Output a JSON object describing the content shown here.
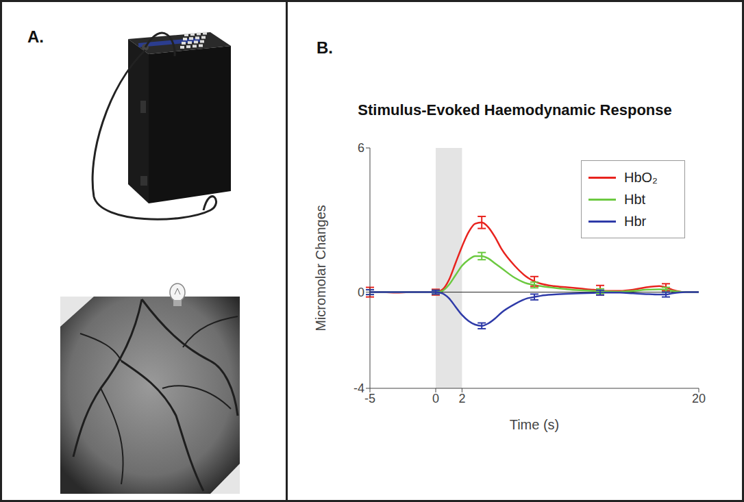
{
  "panel_labels": [
    "A.",
    "B."
  ],
  "chart_data": {
    "type": "line",
    "title": "Stimulus-Evoked Haemodynamic Response",
    "x_label": "Time (s)",
    "y_label": "Micromolar Changes",
    "xlim": [
      -5,
      20
    ],
    "xticks": [
      -5,
      0,
      2,
      20
    ],
    "ylim": [
      -4,
      6
    ],
    "yticks": [
      -4,
      0,
      6
    ],
    "grid": false,
    "legend": "upper right",
    "stimulus": [
      0,
      2
    ],
    "reference_line": 0,
    "x": [
      -5,
      -4,
      -3,
      -2,
      -1,
      0,
      0.5,
      1,
      1.5,
      2,
      2.5,
      3,
      3.5,
      4,
      4.5,
      5,
      6,
      7,
      7.5,
      8,
      9,
      10,
      11,
      12,
      12.5,
      13,
      14,
      15,
      16,
      17,
      17.5,
      18,
      19,
      20
    ],
    "error_x": [
      -5,
      0,
      3.5,
      7.5,
      12.5,
      17.5
    ],
    "series": [
      {
        "name": "HbO₂",
        "color": "#e8231e",
        "values": [
          0,
          0,
          -0.02,
          0,
          0,
          0,
          0.1,
          0.5,
          1.2,
          1.9,
          2.5,
          2.85,
          2.9,
          2.7,
          2.3,
          1.8,
          1.1,
          0.6,
          0.45,
          0.35,
          0.25,
          0.2,
          0.15,
          0.1,
          0.08,
          0.05,
          0.05,
          0.1,
          0.2,
          0.25,
          0.2,
          0.1,
          0,
          0
        ],
        "errors": [
          0.2,
          0.12,
          0.25,
          0.2,
          0.2,
          0.15
        ]
      },
      {
        "name": "Hbt",
        "color": "#6cc940",
        "values": [
          0,
          0,
          0,
          0,
          0,
          0,
          0.05,
          0.3,
          0.7,
          1.1,
          1.35,
          1.5,
          1.5,
          1.4,
          1.2,
          1.0,
          0.6,
          0.35,
          0.3,
          0.25,
          0.18,
          0.12,
          0.08,
          0.05,
          0.04,
          0.03,
          0.02,
          0.05,
          0.1,
          0.12,
          0.1,
          0.05,
          0,
          0
        ],
        "errors": [
          0.1,
          0.08,
          0.15,
          0.12,
          0.1,
          0.1
        ]
      },
      {
        "name": "Hbr",
        "color": "#2e3aa8",
        "values": [
          0,
          0,
          0,
          0,
          0,
          0,
          -0.05,
          -0.25,
          -0.6,
          -0.95,
          -1.2,
          -1.35,
          -1.4,
          -1.3,
          -1.1,
          -0.85,
          -0.5,
          -0.25,
          -0.2,
          -0.15,
          -0.1,
          -0.07,
          -0.05,
          -0.03,
          -0.02,
          -0.02,
          -0.02,
          -0.05,
          -0.08,
          -0.1,
          -0.1,
          -0.05,
          0,
          0
        ],
        "errors": [
          0.1,
          0.08,
          0.12,
          0.12,
          0.1,
          0.1
        ]
      }
    ]
  }
}
